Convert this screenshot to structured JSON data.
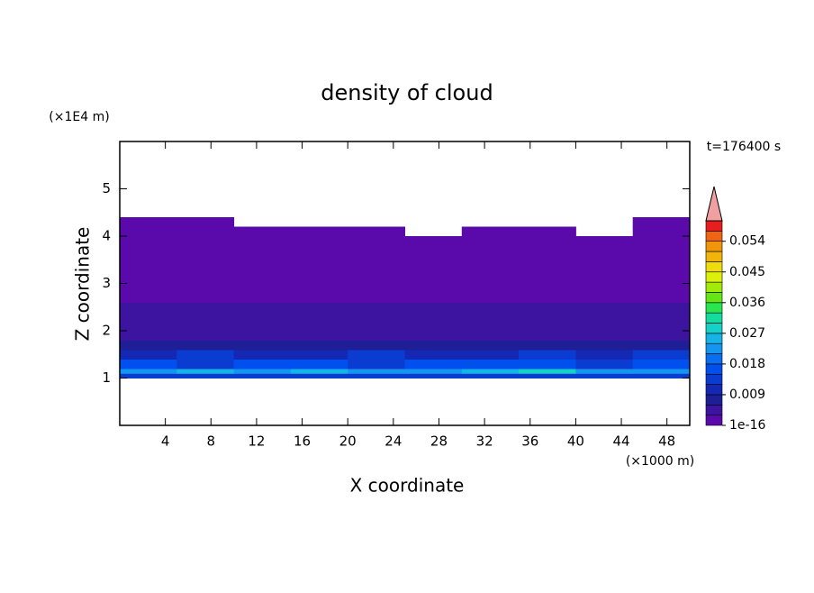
{
  "chart_data": {
    "type": "contour",
    "title": "density of cloud",
    "x_label": "X coordinate",
    "x_unit": "(×1000 m)",
    "y_label": "Z coordinate",
    "y_unit": "(×1E4 m)",
    "time_label": "t=176400 s",
    "xlim": [
      0,
      50
    ],
    "ylim": [
      0,
      6
    ],
    "xticks": [
      4,
      8,
      12,
      16,
      20,
      24,
      28,
      32,
      36,
      40,
      44,
      48
    ],
    "yticks": [
      1,
      2,
      3,
      4,
      5
    ],
    "x": [
      0,
      5,
      10,
      15,
      20,
      25,
      30,
      35,
      40,
      45,
      50
    ],
    "y": [
      1.0,
      1.1,
      1.2,
      1.4,
      1.6,
      1.8,
      2.0,
      2.3,
      2.6,
      3.0,
      3.5,
      4.0,
      4.2,
      4.4
    ],
    "z": [
      [
        0.012,
        0.013,
        0.012,
        0.014,
        0.013,
        0.012,
        0.013,
        0.014,
        0.012,
        0.013
      ],
      [
        0.021,
        0.024,
        0.022,
        0.025,
        0.023,
        0.022,
        0.024,
        0.028,
        0.023,
        0.021
      ],
      [
        0.015,
        0.014,
        0.016,
        0.015,
        0.014,
        0.016,
        0.015,
        0.017,
        0.014,
        0.015
      ],
      [
        0.011,
        0.012,
        0.01,
        0.011,
        0.012,
        0.011,
        0.01,
        0.012,
        0.011,
        0.012
      ],
      [
        0.008,
        0.007,
        0.008,
        0.007,
        0.008,
        0.007,
        0.008,
        0.007,
        0.008,
        0.007
      ],
      [
        0.005,
        0.005,
        0.005,
        0.005,
        0.005,
        0.005,
        0.005,
        0.005,
        0.005,
        0.005
      ],
      [
        0.004,
        0.004,
        0.004,
        0.004,
        0.004,
        0.004,
        0.004,
        0.004,
        0.004,
        0.004
      ],
      [
        0.0035,
        0.0035,
        0.0035,
        0.0035,
        0.0035,
        0.0035,
        0.0035,
        0.0035,
        0.0035,
        0.0035
      ],
      [
        0.002,
        0.002,
        0.002,
        0.002,
        0.002,
        0.002,
        0.002,
        0.002,
        0.002,
        0.002
      ],
      [
        0.0015,
        0.0015,
        0.0015,
        0.0015,
        0.0015,
        0.0015,
        0.0015,
        0.0015,
        0.0015,
        0.0015
      ],
      [
        0.001,
        0.001,
        0.001,
        0.001,
        0.001,
        0.001,
        0.001,
        0.001,
        0.001,
        0.001
      ],
      [
        0.0008,
        0.0008,
        0.0008,
        0.0008,
        0.0008,
        null,
        0.0008,
        0.0008,
        null,
        0.0008
      ],
      [
        0.0005,
        0.0005,
        null,
        null,
        null,
        null,
        null,
        null,
        null,
        0.0005
      ]
    ],
    "colorbar": {
      "levels": [
        1e-16,
        0.003,
        0.006,
        0.009,
        0.012,
        0.015,
        0.018,
        0.021,
        0.024,
        0.027,
        0.03,
        0.033,
        0.036,
        0.039,
        0.042,
        0.045,
        0.048,
        0.051,
        0.054,
        0.057,
        0.06
      ],
      "ticks": [
        1e-16,
        0.009,
        0.018,
        0.027,
        0.036,
        0.045,
        0.054
      ],
      "colors": [
        "#5a0aaa",
        "#3c14a0",
        "#1e1e96",
        "#1428b4",
        "#0a3cd2",
        "#0050f0",
        "#0a6ef0",
        "#1496f0",
        "#14b4e6",
        "#14d2c8",
        "#14dca0",
        "#28e650",
        "#64e614",
        "#a0eb0a",
        "#dcf00a",
        "#f0dc0a",
        "#f0b40a",
        "#f0960a",
        "#f06414",
        "#e61e1e"
      ],
      "extend_color": "#f0a0a0"
    }
  }
}
